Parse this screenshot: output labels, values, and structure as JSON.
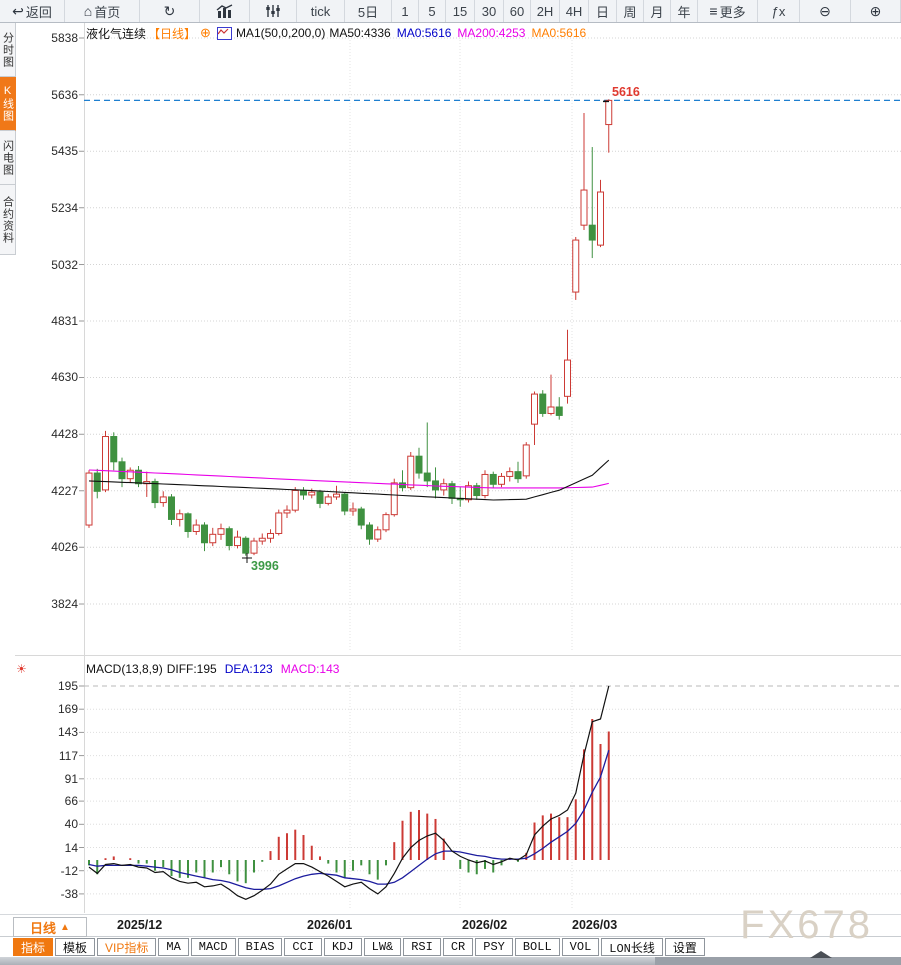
{
  "toolbar": {
    "items": [
      {
        "name": "back-button",
        "icon": "↩",
        "label": "返回"
      },
      {
        "name": "home-button",
        "icon": "⌂",
        "label": "首页"
      },
      {
        "name": "refresh-button",
        "icon": "↻",
        "label": ""
      },
      {
        "name": "chart-style-button",
        "shape": "bars-chart",
        "label": ""
      },
      {
        "name": "indicator-settings-button",
        "shape": "sliders",
        "label": ""
      },
      {
        "name": "period-tick-button",
        "label": "tick"
      },
      {
        "name": "period-5d-button",
        "label": "5日"
      },
      {
        "name": "period-1m-button",
        "label": "1"
      },
      {
        "name": "period-5m-button",
        "label": "5"
      },
      {
        "name": "period-15m-button",
        "label": "15"
      },
      {
        "name": "period-30m-button",
        "label": "30"
      },
      {
        "name": "period-60m-button",
        "label": "60"
      },
      {
        "name": "period-2h-button",
        "label": "2H"
      },
      {
        "name": "period-4h-button",
        "label": "4H"
      },
      {
        "name": "period-day-button",
        "label": "日"
      },
      {
        "name": "period-week-button",
        "label": "周"
      },
      {
        "name": "period-month-button",
        "label": "月"
      },
      {
        "name": "period-year-button",
        "label": "年"
      },
      {
        "name": "more-button",
        "icon": "≡",
        "label": "更多"
      },
      {
        "name": "fx-button",
        "label": "ƒx"
      },
      {
        "name": "zoom-out-button",
        "icon": "⊖",
        "label": ""
      },
      {
        "name": "zoom-in-button",
        "icon": "⊕",
        "label": ""
      }
    ]
  },
  "sidebar": {
    "items": [
      {
        "name": "sidebar-item-time-chart",
        "label": "分时图",
        "active": false
      },
      {
        "name": "sidebar-item-kline-chart",
        "label": "K线图",
        "active": true
      },
      {
        "name": "sidebar-item-flash-chart",
        "label": "闪电图",
        "active": false
      },
      {
        "name": "sidebar-item-contract-info",
        "label": "合约资料",
        "active": false
      }
    ]
  },
  "chart_header": {
    "symbol": "液化气连续",
    "period": "【日线】",
    "add_icon": "⊕",
    "ma_settings": "MA1(50,0,200,0)",
    "ma50": "MA50:4336",
    "ma0_first": "MA0:5616",
    "ma200": "MA200:4253",
    "ma0_second": "MA0:5616"
  },
  "macd_header": {
    "sun_icon": "☀",
    "formula": "MACD(13,8,9)",
    "diff": "DIFF:195",
    "dea": "DEA:123",
    "macd": "MACD:143"
  },
  "x_axis": {
    "labels": [
      "2025/12",
      "2026/01",
      "2026/02",
      "2026/03"
    ]
  },
  "bottom_bar": {
    "period_label": "日线",
    "period_arrow": "▲"
  },
  "tabs": {
    "items": [
      {
        "name": "tab-indicator",
        "label": "指标",
        "selected": true
      },
      {
        "name": "tab-template",
        "label": "模板"
      },
      {
        "name": "tab-vip-indicator",
        "label": "VIP指标",
        "vip": true
      },
      {
        "name": "tab-ma",
        "label": "MA"
      },
      {
        "name": "tab-macd",
        "label": "MACD"
      },
      {
        "name": "tab-bias",
        "label": "BIAS"
      },
      {
        "name": "tab-cci",
        "label": "CCI"
      },
      {
        "name": "tab-kdj",
        "label": "KDJ"
      },
      {
        "name": "tab-lw",
        "label": "LW&"
      },
      {
        "name": "tab-rsi",
        "label": "RSI"
      },
      {
        "name": "tab-cr",
        "label": "CR"
      },
      {
        "name": "tab-psy",
        "label": "PSY"
      },
      {
        "name": "tab-boll",
        "label": "BOLL"
      },
      {
        "name": "tab-vol",
        "label": "VOL"
      },
      {
        "name": "tab-lon",
        "label": "LON长线"
      },
      {
        "name": "tab-settings",
        "label": "设置"
      }
    ]
  },
  "watermark": "FX678",
  "colors": {
    "accent_orange": "#f07810",
    "candle_up_red": "#cc3a35",
    "candle_down_green": "#3f9140",
    "ma50_black": "#111111",
    "ma200_magenta": "#e800e8",
    "dea_blue": "#1c1c9e",
    "close_line_blue": "#1e7fd0",
    "label_red": "#e03a30",
    "label_green": "#3c9a46"
  },
  "chart_data": [
    {
      "type": "candlestick",
      "title": "液化气连续 日线",
      "y_ticks": [
        5838,
        5636,
        5435,
        5234,
        5032,
        4831,
        4630,
        4428,
        4227,
        4026,
        3824
      ],
      "ylim": [
        3824,
        5838
      ],
      "x_labels": [
        "2025/12",
        "2026/01",
        "2026/02",
        "2026/03"
      ],
      "last_price": 5616,
      "low_label": 3996,
      "ma50_last": 4336,
      "ma200_last": 4253,
      "candles_ohlc": [
        [
          4105,
          4300,
          4095,
          4290
        ],
        [
          4290,
          4305,
          4200,
          4225
        ],
        [
          4230,
          4440,
          4222,
          4420
        ],
        [
          4420,
          4435,
          4300,
          4330
        ],
        [
          4330,
          4345,
          4240,
          4270
        ],
        [
          4270,
          4310,
          4255,
          4300
        ],
        [
          4300,
          4315,
          4240,
          4252
        ],
        [
          4252,
          4295,
          4205,
          4260
        ],
        [
          4260,
          4270,
          4165,
          4185
        ],
        [
          4185,
          4225,
          4170,
          4205
        ],
        [
          4205,
          4215,
          4105,
          4125
        ],
        [
          4125,
          4160,
          4100,
          4145
        ],
        [
          4145,
          4150,
          4060,
          4082
        ],
        [
          4082,
          4125,
          4070,
          4105
        ],
        [
          4105,
          4115,
          4012,
          4042
        ],
        [
          4042,
          4095,
          4030,
          4072
        ],
        [
          4072,
          4110,
          4052,
          4092
        ],
        [
          4092,
          4100,
          4015,
          4032
        ],
        [
          4032,
          4085,
          4022,
          4062
        ],
        [
          4058,
          4065,
          3996,
          4005
        ],
        [
          4005,
          4060,
          3998,
          4048
        ],
        [
          4048,
          4075,
          4035,
          4058
        ],
        [
          4058,
          4090,
          4042,
          4075
        ],
        [
          4075,
          4160,
          4068,
          4148
        ],
        [
          4148,
          4175,
          4130,
          4158
        ],
        [
          4158,
          4240,
          4150,
          4228
        ],
        [
          4228,
          4240,
          4195,
          4212
        ],
        [
          4212,
          4235,
          4200,
          4222
        ],
        [
          4222,
          4230,
          4165,
          4182
        ],
        [
          4182,
          4215,
          4175,
          4205
        ],
        [
          4205,
          4245,
          4195,
          4215
        ],
        [
          4215,
          4222,
          4140,
          4155
        ],
        [
          4155,
          4185,
          4138,
          4162
        ],
        [
          4162,
          4170,
          4090,
          4105
        ],
        [
          4105,
          4115,
          4035,
          4055
        ],
        [
          4055,
          4100,
          4045,
          4088
        ],
        [
          4088,
          4150,
          4080,
          4142
        ],
        [
          4142,
          4270,
          4135,
          4255
        ],
        [
          4255,
          4300,
          4225,
          4238
        ],
        [
          4238,
          4365,
          4230,
          4350
        ],
        [
          4350,
          4380,
          4270,
          4290
        ],
        [
          4290,
          4470,
          4240,
          4262
        ],
        [
          4262,
          4310,
          4200,
          4230
        ],
        [
          4230,
          4270,
          4210,
          4252
        ],
        [
          4252,
          4262,
          4180,
          4200
        ],
        [
          4200,
          4240,
          4170,
          4195
        ],
        [
          4195,
          4260,
          4185,
          4245
        ],
        [
          4245,
          4255,
          4195,
          4210
        ],
        [
          4210,
          4300,
          4200,
          4285
        ],
        [
          4285,
          4295,
          4235,
          4250
        ],
        [
          4250,
          4290,
          4240,
          4278
        ],
        [
          4278,
          4310,
          4260,
          4295
        ],
        [
          4295,
          4330,
          4255,
          4270
        ],
        [
          4280,
          4400,
          4270,
          4390
        ],
        [
          4464,
          4580,
          4390,
          4571
        ],
        [
          4571,
          4585,
          4490,
          4502
        ],
        [
          4502,
          4640,
          4495,
          4525
        ],
        [
          4525,
          4560,
          4480,
          4495
        ],
        [
          4563,
          4800,
          4537,
          4692
        ],
        [
          4934,
          5130,
          4906,
          5119
        ],
        [
          5172,
          5571,
          5155,
          5297
        ],
        [
          5172,
          5450,
          5055,
          5119
        ],
        [
          5101,
          5333,
          5094,
          5290
        ],
        [
          5530,
          5620,
          5430,
          5616
        ]
      ],
      "ma50_points": [
        [
          0,
          4262
        ],
        [
          10,
          4250
        ],
        [
          26,
          4229
        ],
        [
          42,
          4204
        ],
        [
          49,
          4194
        ],
        [
          53,
          4197
        ],
        [
          57,
          4229
        ],
        [
          61,
          4282
        ],
        [
          63,
          4336
        ]
      ],
      "ma200_points": [
        [
          0,
          4301
        ],
        [
          12,
          4285
        ],
        [
          26,
          4265
        ],
        [
          42,
          4244
        ],
        [
          49,
          4237
        ],
        [
          57,
          4237
        ],
        [
          61,
          4240
        ],
        [
          63,
          4253
        ]
      ]
    },
    {
      "type": "macd",
      "params": "13,8,9",
      "y_ticks": [
        195,
        169,
        143,
        117,
        91,
        66,
        40,
        14,
        -12,
        -38
      ],
      "diff": [
        -8,
        -15,
        -5,
        -4,
        -6,
        -5,
        -8,
        -9,
        -14,
        -13,
        -20,
        -24,
        -26,
        -25,
        -30,
        -29,
        -27,
        -33,
        -40,
        -44,
        -40,
        -34,
        -27,
        -16,
        -10,
        -4,
        -4,
        -8,
        -13,
        -18,
        -24,
        -30,
        -27,
        -25,
        -32,
        -38,
        -30,
        -15,
        2,
        14,
        22,
        27,
        30,
        22,
        10,
        4,
        0,
        -3,
        -1,
        -5,
        -2,
        2,
        0,
        6,
        28,
        38,
        46,
        50,
        56,
        75,
        118,
        155,
        158,
        195
      ],
      "dea": [
        -5,
        -7,
        -6,
        -6,
        -6,
        -6,
        -6,
        -7,
        -8,
        -9,
        -11,
        -14,
        -16,
        -18,
        -20,
        -22,
        -23,
        -25,
        -28,
        -31,
        -33,
        -33,
        -32,
        -29,
        -25,
        -21,
        -18,
        -16,
        -15,
        -16,
        -17,
        -20,
        -21,
        -22,
        -24,
        -27,
        -27,
        -25,
        -20,
        -13,
        -6,
        1,
        7,
        10,
        10,
        9,
        7,
        5,
        4,
        2,
        1,
        1,
        1,
        2,
        7,
        13,
        20,
        26,
        32,
        41,
        56,
        76,
        93,
        123
      ],
      "hist": [
        -6,
        -16,
        2,
        4,
        0,
        2,
        -4,
        -4,
        -12,
        -8,
        -18,
        -20,
        -20,
        -14,
        -20,
        -14,
        -8,
        -16,
        -24,
        -26,
        -14,
        -2,
        10,
        26,
        30,
        34,
        28,
        16,
        4,
        -4,
        -14,
        -20,
        -12,
        -6,
        -16,
        -22,
        -6,
        20,
        44,
        54,
        56,
        52,
        46,
        24,
        0,
        -10,
        -14,
        -16,
        -10,
        -14,
        -6,
        2,
        -2,
        8,
        42,
        50,
        52,
        48,
        48,
        68,
        124,
        158,
        130,
        144
      ]
    }
  ]
}
